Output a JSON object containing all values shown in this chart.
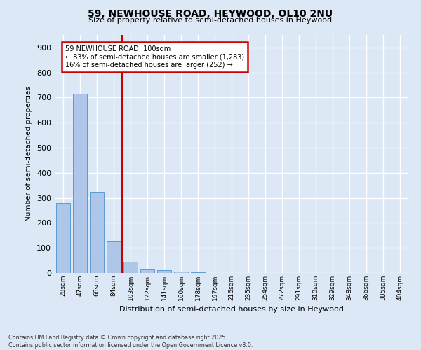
{
  "title1": "59, NEWHOUSE ROAD, HEYWOOD, OL10 2NU",
  "title2": "Size of property relative to semi-detached houses in Heywood",
  "xlabel": "Distribution of semi-detached houses by size in Heywood",
  "ylabel": "Number of semi-detached properties",
  "categories": [
    "28sqm",
    "47sqm",
    "66sqm",
    "84sqm",
    "103sqm",
    "122sqm",
    "141sqm",
    "160sqm",
    "178sqm",
    "197sqm",
    "216sqm",
    "235sqm",
    "254sqm",
    "272sqm",
    "291sqm",
    "310sqm",
    "329sqm",
    "348sqm",
    "366sqm",
    "385sqm",
    "404sqm"
  ],
  "values": [
    280,
    715,
    325,
    125,
    45,
    15,
    10,
    5,
    2,
    1,
    0,
    0,
    0,
    0,
    0,
    0,
    0,
    0,
    0,
    0,
    0
  ],
  "bar_color": "#aec6e8",
  "bar_edge_color": "#5b9bd5",
  "annotation_title": "59 NEWHOUSE ROAD: 100sqm",
  "annotation_line1": "← 83% of semi-detached houses are smaller (1,283)",
  "annotation_line2": "16% of semi-detached houses are larger (252) →",
  "annotation_box_color": "#ffffff",
  "annotation_box_edge": "#cc0000",
  "vline_color": "#cc0000",
  "footer1": "Contains HM Land Registry data © Crown copyright and database right 2025.",
  "footer2": "Contains public sector information licensed under the Open Government Licence v3.0.",
  "ylim": [
    0,
    950
  ],
  "yticks": [
    0,
    100,
    200,
    300,
    400,
    500,
    600,
    700,
    800,
    900
  ],
  "bg_color": "#dce8f5",
  "grid_color": "#ffffff"
}
